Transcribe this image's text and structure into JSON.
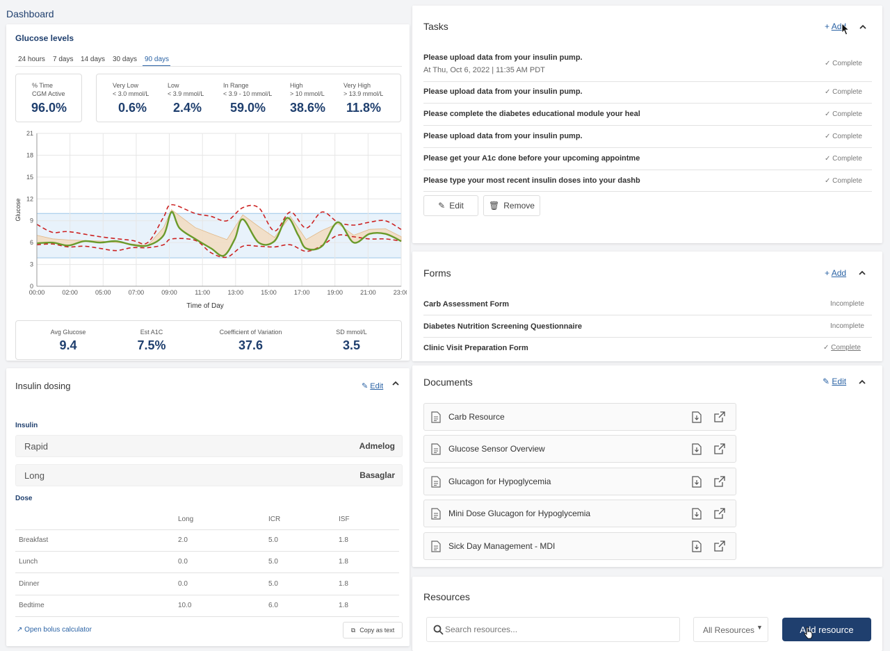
{
  "page_title": "Dashboard",
  "glucose": {
    "title": "Glucose levels",
    "ranges": [
      "24 hours",
      "7 days",
      "14 days",
      "30 days",
      "90 days"
    ],
    "active_range_index": 4,
    "cgm": {
      "label1": "% Time",
      "label2": "CGM Active",
      "value": "96.0%"
    },
    "bands": [
      {
        "label": "Very Low",
        "sub": "< 3.0 mmol/L",
        "value": "0.6%"
      },
      {
        "label": "Low",
        "sub": "< 3.9 mmol/L",
        "value": "2.4%"
      },
      {
        "label": "In Range",
        "sub": "< 3.9 - 10 mmol/L",
        "value": "59.0%"
      },
      {
        "label": "High",
        "sub": "> 10 mmol/L",
        "value": "38.6%"
      },
      {
        "label": "Very High",
        "sub": "> 13.9 mmol/L",
        "value": "11.8%"
      }
    ],
    "summary": [
      {
        "label": "Avg Glucose",
        "value": "9.4"
      },
      {
        "label": "Est A1C",
        "value": "7.5%"
      },
      {
        "label": "Coefficient of Variation",
        "value": "37.6"
      },
      {
        "label": "SD mmol/L",
        "value": "3.5"
      }
    ]
  },
  "chart_data": {
    "type": "line",
    "title": "",
    "xlabel": "Time of Day",
    "ylabel": "Glucose",
    "x_ticks": [
      "00:00",
      "02:00",
      "05:00",
      "07:00",
      "09:00",
      "11:00",
      "13:00",
      "15:00",
      "17:00",
      "19:00",
      "21:00",
      "23:00"
    ],
    "y_ticks": [
      "0",
      "3",
      "6",
      "9",
      "12",
      "15",
      "18",
      "21"
    ],
    "ylim": [
      0,
      21
    ],
    "xlim": [
      0,
      23
    ],
    "target_range": [
      3.9,
      10
    ],
    "series": [
      {
        "role": "median",
        "color": "#6a9a2a",
        "x": [
          0,
          1,
          2,
          3,
          4,
          5,
          6,
          7,
          8,
          8.5,
          9,
          10,
          11,
          11.8,
          12.5,
          13,
          14,
          15,
          15.8,
          16.5,
          17,
          18,
          19,
          20,
          21,
          22,
          23
        ],
        "y": [
          5.9,
          6.0,
          5.6,
          6.2,
          6.0,
          6.2,
          5.7,
          5.6,
          7.0,
          10.2,
          8.0,
          6.5,
          5.2,
          4.2,
          6.5,
          9.2,
          6.0,
          6.2,
          9.4,
          7.0,
          5.2,
          5.5,
          8.8,
          6.0,
          7.2,
          7.2,
          6.2
        ]
      },
      {
        "role": "upper",
        "color": "#cc2222",
        "x": [
          0,
          1,
          2,
          4,
          6,
          7,
          8,
          8.5,
          10,
          11,
          12,
          13,
          14,
          15,
          16,
          17,
          18,
          19,
          20,
          21,
          22,
          23
        ],
        "y": [
          8.5,
          7.4,
          7.5,
          6.8,
          6.3,
          6.0,
          9.5,
          11.2,
          10.0,
          9.6,
          9.0,
          10.8,
          10.8,
          7.6,
          10.2,
          8.0,
          10.2,
          8.8,
          8.4,
          8.8,
          9.0,
          7.8
        ]
      },
      {
        "role": "lower",
        "color": "#cc2222",
        "x": [
          0,
          1,
          2,
          3,
          4,
          5,
          6,
          7,
          8,
          8.5,
          10,
          11,
          12,
          13,
          14,
          15,
          16,
          17,
          18,
          19,
          20,
          21,
          22,
          23
        ],
        "y": [
          5.7,
          5.8,
          5.4,
          5.5,
          5.2,
          4.9,
          5.3,
          5.3,
          5.7,
          6.5,
          6.3,
          4.6,
          4.0,
          5.5,
          5.5,
          5.4,
          5.7,
          4.8,
          5.6,
          7.0,
          6.8,
          6.5,
          6.5,
          6.2
        ]
      }
    ]
  },
  "insulin": {
    "title": "Insulin dosing",
    "edit": "Edit",
    "insulin_label": "Insulin",
    "rows": [
      {
        "type": "Rapid",
        "name": "Admelog"
      },
      {
        "type": "Long",
        "name": "Basaglar"
      }
    ],
    "dose_label": "Dose",
    "dose_headers": [
      "Long",
      "ICR",
      "ISF"
    ],
    "dose_rows": [
      {
        "meal": "Breakfast",
        "long": "2.0",
        "icr": "5.0",
        "isf": "1.8"
      },
      {
        "meal": "Lunch",
        "long": "0.0",
        "icr": "5.0",
        "isf": "1.8"
      },
      {
        "meal": "Dinner",
        "long": "0.0",
        "icr": "5.0",
        "isf": "1.8"
      },
      {
        "meal": "Bedtime",
        "long": "10.0",
        "icr": "6.0",
        "isf": "1.8"
      }
    ],
    "bolus_link": "Open bolus calculator",
    "copy_btn": "Copy as text"
  },
  "tasks": {
    "title": "Tasks",
    "add": "Add",
    "items": [
      {
        "title": "Please upload data from your insulin pump.",
        "sub": "At Thu, Oct 6, 2022 | 11:35 AM PDT",
        "status": "Complete"
      },
      {
        "title": "Please upload data from your insulin pump.",
        "status": "Complete"
      },
      {
        "title": "Please complete the diabetes educational module your heal",
        "status": "Complete"
      },
      {
        "title": "Please upload data from your insulin pump.",
        "status": "Complete"
      },
      {
        "title": "Please get your A1c done before your upcoming appointme",
        "status": "Complete"
      },
      {
        "title": "Please type your most recent insulin doses into your dashb",
        "status": "Complete"
      }
    ],
    "edit_btn": "Edit",
    "remove_btn": "Remove"
  },
  "forms": {
    "title": "Forms",
    "add": "Add",
    "items": [
      {
        "title": "Carb Assessment Form",
        "status": "Incomplete"
      },
      {
        "title": "Diabetes Nutrition Screening Questionnaire",
        "status": "Incomplete"
      },
      {
        "title": "Clinic Visit Preparation Form",
        "status": "Complete"
      }
    ]
  },
  "documents": {
    "title": "Documents",
    "edit": "Edit",
    "items": [
      "Carb Resource",
      "Glucose Sensor Overview",
      "Glucagon for Hypoglycemia",
      "Mini Dose Glucagon for Hypoglycemia",
      "Sick Day Management - MDI"
    ]
  },
  "resources": {
    "title": "Resources",
    "search_placeholder": "Search resources...",
    "filter": "All Resources",
    "add_btn": "Add resource"
  },
  "colors": {
    "accent": "#2b63a5",
    "navy": "#1f3f6e",
    "band": "#e8f2fb",
    "iqr": "#f2dcc0"
  }
}
